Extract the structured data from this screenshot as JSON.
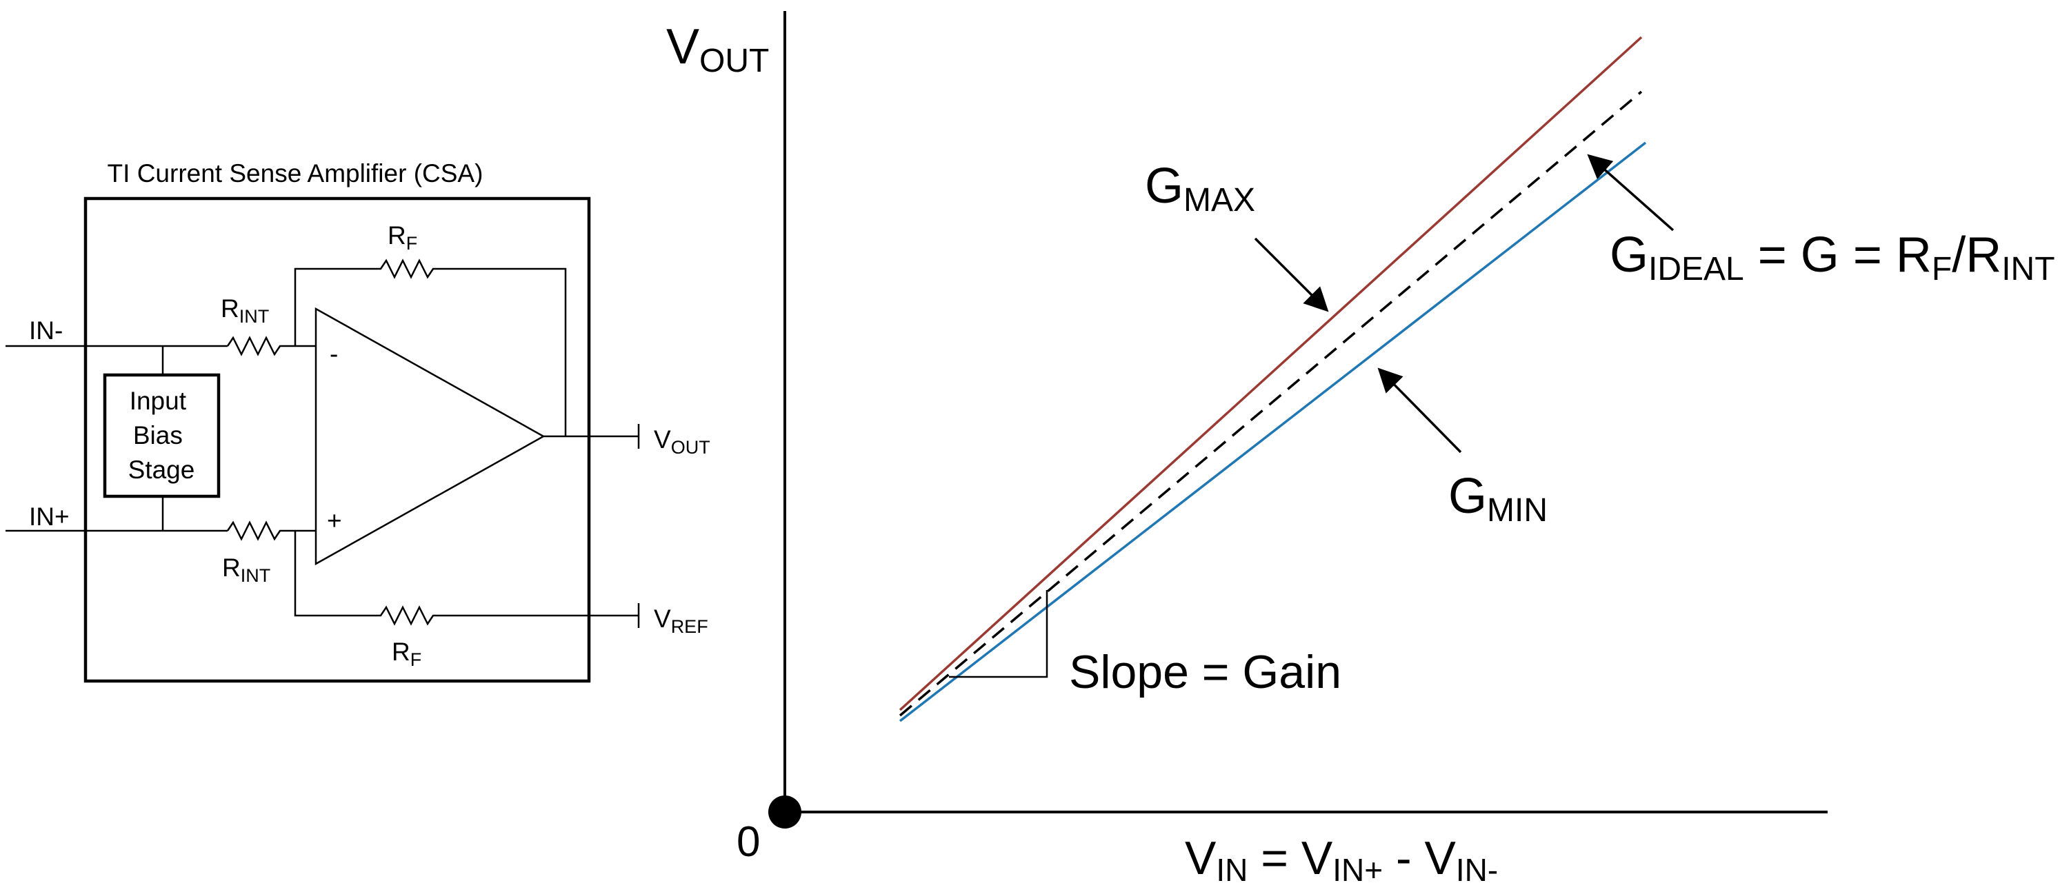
{
  "circuit": {
    "title": "TI Current Sense Amplifier (CSA)",
    "in_minus_label": "IN-",
    "in_plus_label": "IN+",
    "rint_top": {
      "main": "R",
      "sub": "INT"
    },
    "rint_bottom": {
      "main": "R",
      "sub": "INT"
    },
    "rf_top": {
      "main": "R",
      "sub": "F"
    },
    "rf_bottom": {
      "main": "R",
      "sub": "F"
    },
    "bias_stage_lines": [
      "Input",
      "Bias",
      "Stage"
    ],
    "opamp_minus": "-",
    "opamp_plus": "+",
    "vout_pin": {
      "main": "V",
      "sub": "OUT"
    },
    "vref_pin": {
      "main": "V",
      "sub": "REF"
    }
  },
  "graph": {
    "y_axis_label": {
      "main": "V",
      "sub": "OUT"
    },
    "origin_label": "0",
    "x_axis_label": {
      "p1": "V",
      "s1": "IN",
      "p2": " = V",
      "s2": "IN+",
      "p3": " - V",
      "s3": "IN-"
    },
    "gmax_label": {
      "main": "G",
      "sub": "MAX"
    },
    "gmin_label": {
      "main": "G",
      "sub": "MIN"
    },
    "gideal_label": {
      "p1": "G",
      "s1": "IDEAL",
      "p2": " = G = R",
      "s2": "F",
      "p3": "/R",
      "s3": "INT"
    },
    "slope_label": "Slope = Gain",
    "colors": {
      "gmax": "#9b3a32",
      "gideal": "#000000",
      "gmin": "#1f77b4"
    }
  }
}
